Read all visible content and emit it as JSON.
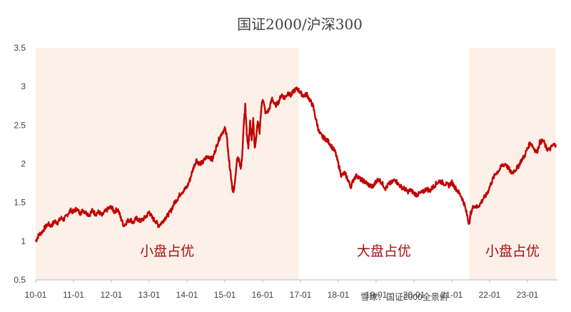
{
  "chart_data": {
    "type": "line",
    "title": "国证2000/沪深300",
    "xlabel": "",
    "ylabel": "",
    "x_tick_labels": [
      "10-01",
      "11-01",
      "12-01",
      "13-01",
      "14-01",
      "15-01",
      "16-01",
      "17-01",
      "18-01",
      "19-01",
      "20-01",
      "21-01",
      "22-01",
      "23-01"
    ],
    "ylim": [
      0.5,
      3.5
    ],
    "y_ticks": [
      0.5,
      1,
      1.5,
      2,
      2.5,
      3,
      3.5
    ],
    "y_tick_labels": [
      "0.5",
      "1",
      "1.5",
      "2",
      "2.5",
      "3",
      "3.5"
    ],
    "grid": false,
    "legend": "none",
    "series": [
      {
        "values": [
          [
            2010.0,
            1.0
          ],
          [
            2010.08,
            1.08
          ],
          [
            2010.17,
            1.12
          ],
          [
            2010.25,
            1.18
          ],
          [
            2010.33,
            1.22
          ],
          [
            2010.42,
            1.2
          ],
          [
            2010.5,
            1.26
          ],
          [
            2010.58,
            1.24
          ],
          [
            2010.67,
            1.3
          ],
          [
            2010.75,
            1.28
          ],
          [
            2010.83,
            1.34
          ],
          [
            2010.92,
            1.4
          ],
          [
            2011.0,
            1.38
          ],
          [
            2011.08,
            1.42
          ],
          [
            2011.17,
            1.36
          ],
          [
            2011.25,
            1.4
          ],
          [
            2011.33,
            1.37
          ],
          [
            2011.42,
            1.34
          ],
          [
            2011.5,
            1.4
          ],
          [
            2011.58,
            1.35
          ],
          [
            2011.67,
            1.38
          ],
          [
            2011.75,
            1.33
          ],
          [
            2011.83,
            1.38
          ],
          [
            2011.92,
            1.42
          ],
          [
            2012.0,
            1.44
          ],
          [
            2012.08,
            1.38
          ],
          [
            2012.17,
            1.42
          ],
          [
            2012.25,
            1.3
          ],
          [
            2012.33,
            1.2
          ],
          [
            2012.42,
            1.26
          ],
          [
            2012.5,
            1.28
          ],
          [
            2012.58,
            1.24
          ],
          [
            2012.67,
            1.3
          ],
          [
            2012.75,
            1.26
          ],
          [
            2012.83,
            1.28
          ],
          [
            2012.92,
            1.32
          ],
          [
            2013.0,
            1.38
          ],
          [
            2013.08,
            1.3
          ],
          [
            2013.17,
            1.26
          ],
          [
            2013.25,
            1.2
          ],
          [
            2013.33,
            1.24
          ],
          [
            2013.42,
            1.3
          ],
          [
            2013.5,
            1.34
          ],
          [
            2013.58,
            1.4
          ],
          [
            2013.67,
            1.5
          ],
          [
            2013.75,
            1.55
          ],
          [
            2013.83,
            1.62
          ],
          [
            2013.92,
            1.66
          ],
          [
            2014.0,
            1.7
          ],
          [
            2014.08,
            1.8
          ],
          [
            2014.17,
            1.95
          ],
          [
            2014.25,
            2.05
          ],
          [
            2014.33,
            2.0
          ],
          [
            2014.42,
            2.02
          ],
          [
            2014.5,
            2.08
          ],
          [
            2014.58,
            2.1
          ],
          [
            2014.67,
            2.05
          ],
          [
            2014.75,
            2.18
          ],
          [
            2014.83,
            2.3
          ],
          [
            2014.92,
            2.4
          ],
          [
            2015.0,
            2.45
          ],
          [
            2015.04,
            2.4
          ],
          [
            2015.08,
            2.2
          ],
          [
            2015.12,
            2.0
          ],
          [
            2015.17,
            1.8
          ],
          [
            2015.21,
            1.62
          ],
          [
            2015.25,
            1.7
          ],
          [
            2015.29,
            1.9
          ],
          [
            2015.33,
            2.1
          ],
          [
            2015.37,
            2.05
          ],
          [
            2015.42,
            1.95
          ],
          [
            2015.46,
            2.1
          ],
          [
            2015.5,
            2.5
          ],
          [
            2015.54,
            2.75
          ],
          [
            2015.58,
            2.4
          ],
          [
            2015.62,
            2.2
          ],
          [
            2015.67,
            2.55
          ],
          [
            2015.71,
            2.3
          ],
          [
            2015.75,
            2.6
          ],
          [
            2015.79,
            2.2
          ],
          [
            2015.83,
            2.35
          ],
          [
            2015.87,
            2.55
          ],
          [
            2015.92,
            2.4
          ],
          [
            2015.96,
            2.7
          ],
          [
            2016.0,
            2.85
          ],
          [
            2016.08,
            2.65
          ],
          [
            2016.17,
            2.7
          ],
          [
            2016.25,
            2.85
          ],
          [
            2016.33,
            2.75
          ],
          [
            2016.42,
            2.8
          ],
          [
            2016.5,
            2.9
          ],
          [
            2016.58,
            2.85
          ],
          [
            2016.67,
            2.92
          ],
          [
            2016.75,
            2.88
          ],
          [
            2016.83,
            2.95
          ],
          [
            2016.92,
            2.97
          ],
          [
            2017.0,
            2.92
          ],
          [
            2017.08,
            2.88
          ],
          [
            2017.17,
            2.9
          ],
          [
            2017.25,
            2.82
          ],
          [
            2017.33,
            2.75
          ],
          [
            2017.42,
            2.55
          ],
          [
            2017.5,
            2.4
          ],
          [
            2017.58,
            2.35
          ],
          [
            2017.67,
            2.32
          ],
          [
            2017.75,
            2.28
          ],
          [
            2017.83,
            2.22
          ],
          [
            2017.92,
            2.15
          ],
          [
            2018.0,
            2.0
          ],
          [
            2018.08,
            1.85
          ],
          [
            2018.17,
            1.88
          ],
          [
            2018.25,
            1.8
          ],
          [
            2018.33,
            1.7
          ],
          [
            2018.42,
            1.82
          ],
          [
            2018.5,
            1.85
          ],
          [
            2018.58,
            1.8
          ],
          [
            2018.67,
            1.78
          ],
          [
            2018.75,
            1.75
          ],
          [
            2018.83,
            1.72
          ],
          [
            2018.92,
            1.7
          ],
          [
            2019.0,
            1.78
          ],
          [
            2019.08,
            1.8
          ],
          [
            2019.17,
            1.74
          ],
          [
            2019.25,
            1.68
          ],
          [
            2019.33,
            1.74
          ],
          [
            2019.42,
            1.76
          ],
          [
            2019.5,
            1.8
          ],
          [
            2019.58,
            1.74
          ],
          [
            2019.67,
            1.7
          ],
          [
            2019.75,
            1.68
          ],
          [
            2019.83,
            1.64
          ],
          [
            2019.92,
            1.66
          ],
          [
            2020.0,
            1.62
          ],
          [
            2020.08,
            1.6
          ],
          [
            2020.17,
            1.62
          ],
          [
            2020.25,
            1.64
          ],
          [
            2020.33,
            1.68
          ],
          [
            2020.42,
            1.65
          ],
          [
            2020.5,
            1.7
          ],
          [
            2020.58,
            1.74
          ],
          [
            2020.67,
            1.78
          ],
          [
            2020.75,
            1.76
          ],
          [
            2020.83,
            1.74
          ],
          [
            2020.92,
            1.72
          ],
          [
            2021.0,
            1.76
          ],
          [
            2021.08,
            1.7
          ],
          [
            2021.17,
            1.64
          ],
          [
            2021.25,
            1.58
          ],
          [
            2021.33,
            1.48
          ],
          [
            2021.42,
            1.3
          ],
          [
            2021.46,
            1.22
          ],
          [
            2021.5,
            1.36
          ],
          [
            2021.58,
            1.46
          ],
          [
            2021.67,
            1.44
          ],
          [
            2021.75,
            1.48
          ],
          [
            2021.83,
            1.55
          ],
          [
            2021.92,
            1.6
          ],
          [
            2022.0,
            1.7
          ],
          [
            2022.08,
            1.8
          ],
          [
            2022.17,
            1.88
          ],
          [
            2022.25,
            1.92
          ],
          [
            2022.33,
            1.98
          ],
          [
            2022.42,
            2.0
          ],
          [
            2022.5,
            1.94
          ],
          [
            2022.58,
            1.88
          ],
          [
            2022.67,
            1.92
          ],
          [
            2022.75,
            1.96
          ],
          [
            2022.83,
            2.04
          ],
          [
            2022.92,
            2.1
          ],
          [
            2023.0,
            2.2
          ],
          [
            2023.08,
            2.28
          ],
          [
            2023.17,
            2.2
          ],
          [
            2023.25,
            2.15
          ],
          [
            2023.33,
            2.28
          ],
          [
            2023.42,
            2.3
          ],
          [
            2023.5,
            2.2
          ],
          [
            2023.58,
            2.18
          ],
          [
            2023.67,
            2.24
          ],
          [
            2023.75,
            2.25
          ]
        ]
      }
    ],
    "regions": [
      {
        "x_start": 2010.0,
        "x_end": 2016.95,
        "label": "小盘占优",
        "shaded": true
      },
      {
        "x_start": 2016.95,
        "x_end": 2021.46,
        "label": "大盘占优",
        "shaded": false
      },
      {
        "x_start": 2021.46,
        "x_end": 2023.75,
        "label": "小盘占优",
        "shaded": true
      }
    ],
    "watermark": "雪球：国证2000全景俯"
  },
  "colors": {
    "line": "#C00000",
    "shade": "#FDF0E8",
    "region_label": "#A50F0F",
    "axis": "#BFBFBF",
    "watermark": "#D9D9D9"
  }
}
